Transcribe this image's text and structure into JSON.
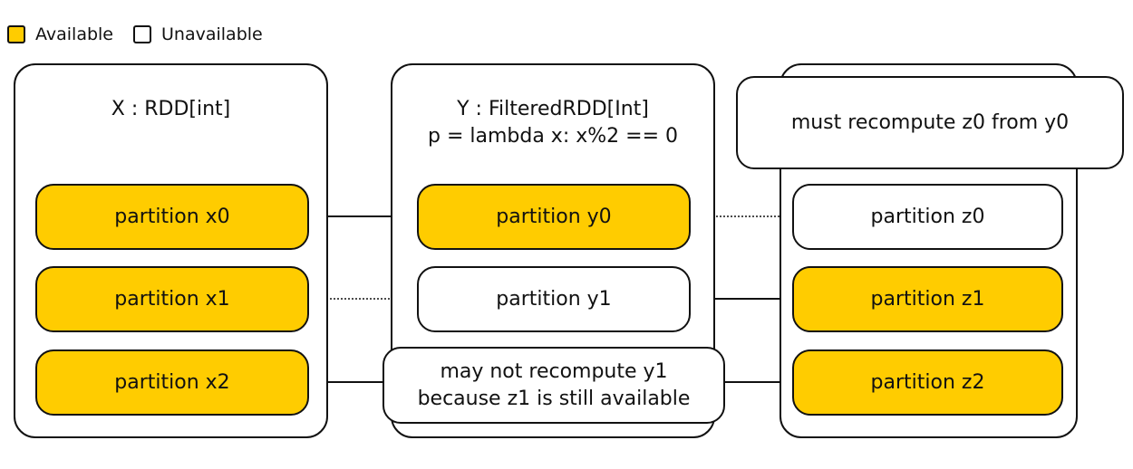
{
  "legend": {
    "available": {
      "label": "Available",
      "color": "#FFCC00"
    },
    "unavailable": {
      "label": "Unavailable",
      "color": "#FFFFFF"
    }
  },
  "rdds": {
    "x": {
      "title": "X : RDD[int]"
    },
    "y": {
      "title_line1": "Y : FilteredRDD[Int]",
      "title_line2": "p = lambda x: x%2 == 0"
    }
  },
  "partitions": {
    "x0": {
      "label": "partition x0",
      "status": "available"
    },
    "x1": {
      "label": "partition x1",
      "status": "available"
    },
    "x2": {
      "label": "partition x2",
      "status": "available"
    },
    "y0": {
      "label": "partition y0",
      "status": "available"
    },
    "y1": {
      "label": "partition y1",
      "status": "unavailable"
    },
    "z0": {
      "label": "partition z0",
      "status": "unavailable"
    },
    "z1": {
      "label": "partition z1",
      "status": "available"
    },
    "z2": {
      "label": "partition z2",
      "status": "available"
    }
  },
  "notes": {
    "z0_note": "must recompute z0 from y0",
    "y1_note_line1": "may not recompute y1",
    "y1_note_line2": "because z1 is still available"
  },
  "edges": [
    {
      "from": "x0",
      "to": "y0",
      "style": "solid"
    },
    {
      "from": "x1",
      "to": "y1",
      "style": "dotted"
    },
    {
      "from": "x2",
      "to": "z2",
      "style": "solid"
    },
    {
      "from": "y0",
      "to": "z0",
      "style": "dotted"
    },
    {
      "from": "y1",
      "to": "z1",
      "style": "solid"
    }
  ]
}
